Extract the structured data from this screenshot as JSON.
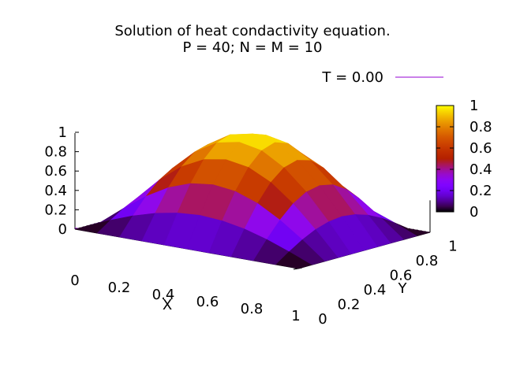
{
  "chart_data": {
    "type": "surface",
    "title": "Solution of heat condactivity equation.",
    "subtitle": "P = 40; N = M = 10",
    "xlabel": "X",
    "ylabel": "Y",
    "zlabel": "",
    "xlim": [
      0,
      1
    ],
    "ylim": [
      0,
      1
    ],
    "zlim": [
      0,
      1
    ],
    "x_ticks": [
      "0",
      "0.2",
      "0.4",
      "0.6",
      "0.8",
      "1"
    ],
    "y_ticks": [
      "0",
      "0.2",
      "0.4",
      "0.6",
      "0.8",
      "1"
    ],
    "z_ticks": [
      "0",
      "0.2",
      "0.4",
      "0.6",
      "0.8",
      "1"
    ],
    "colorbar": {
      "ticks": [
        "0",
        "0.2",
        "0.4",
        "0.6",
        "0.8",
        "1"
      ],
      "range": [
        0,
        1
      ],
      "palette": "gnuplot"
    },
    "legend": {
      "position": "top-right",
      "entries": [
        {
          "label": "T = 0.00",
          "color": "#9400d3"
        }
      ]
    },
    "grid": {
      "nx": 10,
      "ny": 10
    },
    "x": [
      0,
      0.1,
      0.2,
      0.3,
      0.4,
      0.5,
      0.6,
      0.7,
      0.8,
      0.9,
      1.0
    ],
    "y": [
      0,
      0.1,
      0.2,
      0.3,
      0.4,
      0.5,
      0.6,
      0.7,
      0.8,
      0.9,
      1.0
    ],
    "z": [
      [
        0,
        0,
        0,
        0,
        0,
        0,
        0,
        0,
        0,
        0,
        0
      ],
      [
        0,
        0.095,
        0.181,
        0.249,
        0.293,
        0.309,
        0.293,
        0.249,
        0.181,
        0.095,
        0
      ],
      [
        0,
        0.181,
        0.345,
        0.476,
        0.559,
        0.588,
        0.559,
        0.476,
        0.345,
        0.181,
        0
      ],
      [
        0,
        0.249,
        0.476,
        0.655,
        0.769,
        0.809,
        0.769,
        0.655,
        0.476,
        0.249,
        0
      ],
      [
        0,
        0.293,
        0.559,
        0.769,
        0.905,
        0.951,
        0.905,
        0.769,
        0.559,
        0.293,
        0
      ],
      [
        0,
        0.309,
        0.588,
        0.809,
        0.951,
        1.0,
        0.951,
        0.809,
        0.588,
        0.309,
        0
      ],
      [
        0,
        0.293,
        0.559,
        0.769,
        0.905,
        0.951,
        0.905,
        0.769,
        0.559,
        0.293,
        0
      ],
      [
        0,
        0.249,
        0.476,
        0.655,
        0.769,
        0.809,
        0.769,
        0.655,
        0.476,
        0.249,
        0
      ],
      [
        0,
        0.181,
        0.345,
        0.476,
        0.559,
        0.588,
        0.559,
        0.476,
        0.345,
        0.181,
        0
      ],
      [
        0,
        0.095,
        0.181,
        0.249,
        0.293,
        0.309,
        0.293,
        0.249,
        0.181,
        0.095,
        0
      ],
      [
        0,
        0,
        0,
        0,
        0,
        0,
        0,
        0,
        0,
        0,
        0
      ]
    ]
  }
}
